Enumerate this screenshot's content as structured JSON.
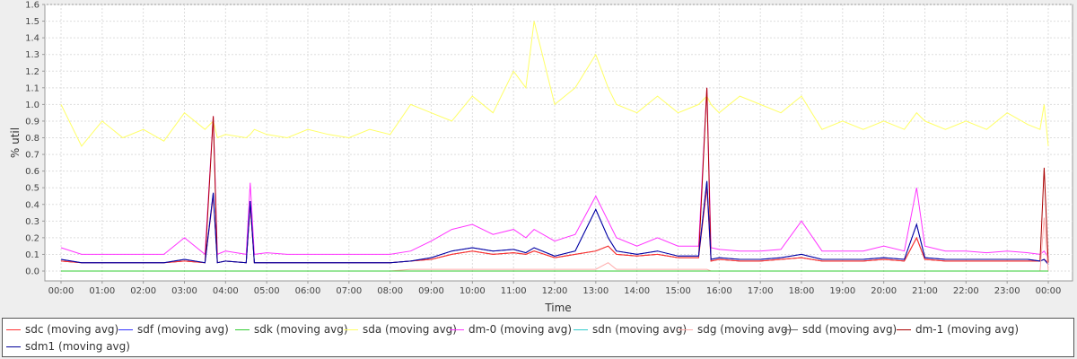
{
  "chart_data": {
    "type": "line",
    "xlabel": "Time",
    "ylabel": "% util",
    "ylim": [
      0.0,
      1.6
    ],
    "yticks": [
      "0.0",
      "0.1",
      "0.2",
      "0.3",
      "0.4",
      "0.5",
      "0.6",
      "0.7",
      "0.8",
      "0.9",
      "1.0",
      "1.1",
      "1.2",
      "1.3",
      "1.4",
      "1.5",
      "1.6"
    ],
    "xticks": [
      "00:00",
      "01:00",
      "02:00",
      "03:00",
      "04:00",
      "05:00",
      "06:00",
      "07:00",
      "08:00",
      "09:00",
      "10:00",
      "11:00",
      "12:00",
      "13:00",
      "14:00",
      "15:00",
      "16:00",
      "17:00",
      "18:00",
      "19:00",
      "20:00",
      "21:00",
      "22:00",
      "23:00",
      "00:00"
    ],
    "grid": true,
    "legend_position": "bottom",
    "x_hours": [
      0,
      0.5,
      1,
      1.5,
      2,
      2.5,
      3,
      3.5,
      3.7,
      3.8,
      4,
      4.5,
      4.6,
      4.7,
      5,
      5.5,
      6,
      6.5,
      7,
      7.5,
      8,
      8.5,
      9,
      9.5,
      10,
      10.5,
      11,
      11.3,
      11.5,
      12,
      12.5,
      13,
      13.3,
      13.5,
      14,
      14.5,
      15,
      15.5,
      15.7,
      15.8,
      16,
      16.5,
      17,
      17.5,
      18,
      18.5,
      19,
      19.5,
      20,
      20.5,
      20.8,
      21,
      21.5,
      22,
      22.5,
      23,
      23.5,
      23.8,
      23.9,
      24
    ],
    "series": [
      {
        "name": "sdc (moving avg)",
        "color": "#ff3333",
        "values": [
          0.06,
          0.05,
          0.05,
          0.05,
          0.05,
          0.05,
          0.06,
          0.05,
          0.45,
          0.05,
          0.06,
          0.05,
          0.4,
          0.05,
          0.05,
          0.05,
          0.05,
          0.05,
          0.05,
          0.05,
          0.05,
          0.06,
          0.07,
          0.1,
          0.12,
          0.1,
          0.11,
          0.1,
          0.12,
          0.08,
          0.1,
          0.12,
          0.15,
          0.1,
          0.09,
          0.1,
          0.08,
          0.08,
          0.5,
          0.06,
          0.07,
          0.06,
          0.06,
          0.07,
          0.08,
          0.06,
          0.06,
          0.06,
          0.07,
          0.06,
          0.2,
          0.07,
          0.06,
          0.06,
          0.06,
          0.06,
          0.06,
          0.06,
          0.07,
          0.05
        ]
      },
      {
        "name": "sdf (moving avg)",
        "color": "#3333ff",
        "values": [
          0.07,
          0.05,
          0.05,
          0.05,
          0.05,
          0.05,
          0.07,
          0.05,
          0.47,
          0.05,
          0.06,
          0.05,
          0.42,
          0.05,
          0.05,
          0.05,
          0.05,
          0.05,
          0.05,
          0.05,
          0.05,
          0.06,
          0.08,
          0.12,
          0.14,
          0.12,
          0.13,
          0.11,
          0.14,
          0.09,
          0.12,
          0.37,
          0.2,
          0.12,
          0.1,
          0.12,
          0.09,
          0.09,
          0.54,
          0.07,
          0.08,
          0.07,
          0.07,
          0.08,
          0.1,
          0.07,
          0.07,
          0.07,
          0.08,
          0.07,
          0.28,
          0.08,
          0.07,
          0.07,
          0.07,
          0.07,
          0.07,
          0.06,
          0.07,
          0.04
        ]
      },
      {
        "name": "sdk (moving avg)",
        "color": "#33cc33",
        "values": [
          0.0,
          0.0,
          0.0,
          0.0,
          0.0,
          0.0,
          0.0,
          0.0,
          0.0,
          0.0,
          0.0,
          0.0,
          0.0,
          0.0,
          0.0,
          0.0,
          0.0,
          0.0,
          0.0,
          0.0,
          0.0,
          0.0,
          0.0,
          0.0,
          0.0,
          0.0,
          0.0,
          0.0,
          0.0,
          0.0,
          0.0,
          0.0,
          0.0,
          0.0,
          0.0,
          0.0,
          0.0,
          0.0,
          0.0,
          0.0,
          0.0,
          0.0,
          0.0,
          0.0,
          0.0,
          0.0,
          0.0,
          0.0,
          0.0,
          0.0,
          0.0,
          0.0,
          0.0,
          0.0,
          0.0,
          0.0,
          0.0,
          0.0,
          0.0,
          0.0
        ]
      },
      {
        "name": "sda (moving avg)",
        "color": "#ffff66",
        "values": [
          1.0,
          0.75,
          0.9,
          0.8,
          0.85,
          0.78,
          0.95,
          0.85,
          0.9,
          0.8,
          0.82,
          0.8,
          0.82,
          0.85,
          0.82,
          0.8,
          0.85,
          0.82,
          0.8,
          0.85,
          0.82,
          1.0,
          0.95,
          0.9,
          1.05,
          0.95,
          1.2,
          1.1,
          1.5,
          1.0,
          1.1,
          1.3,
          1.1,
          1.0,
          0.95,
          1.05,
          0.95,
          1.0,
          1.05,
          1.0,
          0.95,
          1.05,
          1.0,
          0.95,
          1.05,
          0.85,
          0.9,
          0.85,
          0.9,
          0.85,
          0.95,
          0.9,
          0.85,
          0.9,
          0.85,
          0.95,
          0.88,
          0.85,
          1.0,
          0.75
        ]
      },
      {
        "name": "dm-0 (moving avg)",
        "color": "#ff33ff",
        "values": [
          0.14,
          0.1,
          0.1,
          0.1,
          0.1,
          0.1,
          0.2,
          0.1,
          0.93,
          0.1,
          0.12,
          0.1,
          0.53,
          0.1,
          0.11,
          0.1,
          0.1,
          0.1,
          0.1,
          0.1,
          0.1,
          0.12,
          0.18,
          0.25,
          0.28,
          0.22,
          0.25,
          0.2,
          0.25,
          0.18,
          0.22,
          0.45,
          0.3,
          0.2,
          0.15,
          0.2,
          0.15,
          0.15,
          1.1,
          0.14,
          0.13,
          0.12,
          0.12,
          0.13,
          0.3,
          0.12,
          0.12,
          0.12,
          0.15,
          0.12,
          0.5,
          0.15,
          0.12,
          0.12,
          0.11,
          0.12,
          0.11,
          0.1,
          0.12,
          0.08
        ]
      },
      {
        "name": "sdn (moving avg)",
        "color": "#33cccc",
        "values": [
          0.0,
          0.0,
          0.0,
          0.0,
          0.0,
          0.0,
          0.0,
          0.0,
          0.0,
          0.0,
          0.0,
          0.0,
          0.0,
          0.0,
          0.0,
          0.0,
          0.0,
          0.0,
          0.0,
          0.0,
          0.0,
          0.0,
          0.0,
          0.0,
          0.0,
          0.0,
          0.0,
          0.0,
          0.0,
          0.0,
          0.0,
          0.0,
          0.0,
          0.0,
          0.0,
          0.0,
          0.0,
          0.0,
          0.0,
          0.0,
          0.0,
          0.0,
          0.0,
          0.0,
          0.0,
          0.0,
          0.0,
          0.0,
          0.0,
          0.0,
          0.0,
          0.0,
          0.0,
          0.0,
          0.0,
          0.0,
          0.0,
          0.0,
          0.0,
          0.0
        ]
      },
      {
        "name": "sdg (moving avg)",
        "color": "#ffaaaa",
        "values": [
          0.0,
          0.0,
          0.0,
          0.0,
          0.0,
          0.0,
          0.0,
          0.0,
          0.0,
          0.0,
          0.0,
          0.0,
          0.0,
          0.0,
          0.0,
          0.0,
          0.0,
          0.0,
          0.0,
          0.0,
          0.0,
          0.01,
          0.01,
          0.01,
          0.01,
          0.01,
          0.01,
          0.01,
          0.01,
          0.01,
          0.01,
          0.01,
          0.05,
          0.01,
          0.01,
          0.01,
          0.01,
          0.01,
          0.01,
          0.0,
          0.0,
          0.0,
          0.0,
          0.0,
          0.0,
          0.0,
          0.0,
          0.0,
          0.0,
          0.0,
          0.0,
          0.0,
          0.0,
          0.0,
          0.0,
          0.0,
          0.0,
          0.0,
          0.32,
          0.0
        ]
      },
      {
        "name": "sdd (moving avg)",
        "color": "#666666",
        "values": [
          0.0,
          0.0,
          0.0,
          0.0,
          0.0,
          0.0,
          0.0,
          0.0,
          0.0,
          0.0,
          0.0,
          0.0,
          0.0,
          0.0,
          0.0,
          0.0,
          0.0,
          0.0,
          0.0,
          0.0,
          0.0,
          0.0,
          0.0,
          0.0,
          0.0,
          0.0,
          0.0,
          0.0,
          0.0,
          0.0,
          0.0,
          0.0,
          0.0,
          0.0,
          0.0,
          0.0,
          0.0,
          0.0,
          0.0,
          0.0,
          0.0,
          0.0,
          0.0,
          0.0,
          0.0,
          0.0,
          0.0,
          0.0,
          0.0,
          0.0,
          0.0,
          0.0,
          0.0,
          0.0,
          0.0,
          0.0,
          0.0,
          0.0,
          0.0,
          0.0
        ]
      },
      {
        "name": "dm-1 (moving avg)",
        "color": "#aa0000",
        "values": [
          0.06,
          0.05,
          0.05,
          0.05,
          0.05,
          0.05,
          0.06,
          0.05,
          0.93,
          0.05,
          0.06,
          0.05,
          0.4,
          0.05,
          0.05,
          0.05,
          0.05,
          0.05,
          0.05,
          0.05,
          0.05,
          0.06,
          0.07,
          0.1,
          0.12,
          0.1,
          0.11,
          0.1,
          0.12,
          0.08,
          0.1,
          0.12,
          0.15,
          0.1,
          0.09,
          0.1,
          0.08,
          0.08,
          1.1,
          0.06,
          0.07,
          0.06,
          0.06,
          0.07,
          0.08,
          0.06,
          0.06,
          0.06,
          0.07,
          0.06,
          0.2,
          0.07,
          0.06,
          0.06,
          0.06,
          0.06,
          0.06,
          0.06,
          0.62,
          0.05
        ]
      },
      {
        "name": "sdm1 (moving avg)",
        "color": "#000099",
        "values": [
          0.07,
          0.05,
          0.05,
          0.05,
          0.05,
          0.05,
          0.07,
          0.05,
          0.47,
          0.05,
          0.06,
          0.05,
          0.42,
          0.05,
          0.05,
          0.05,
          0.05,
          0.05,
          0.05,
          0.05,
          0.05,
          0.06,
          0.08,
          0.12,
          0.14,
          0.12,
          0.13,
          0.11,
          0.14,
          0.09,
          0.12,
          0.37,
          0.2,
          0.12,
          0.1,
          0.12,
          0.09,
          0.09,
          0.54,
          0.07,
          0.08,
          0.07,
          0.07,
          0.08,
          0.1,
          0.07,
          0.07,
          0.07,
          0.08,
          0.07,
          0.28,
          0.08,
          0.07,
          0.07,
          0.07,
          0.07,
          0.07,
          0.06,
          0.07,
          0.04
        ]
      }
    ]
  }
}
